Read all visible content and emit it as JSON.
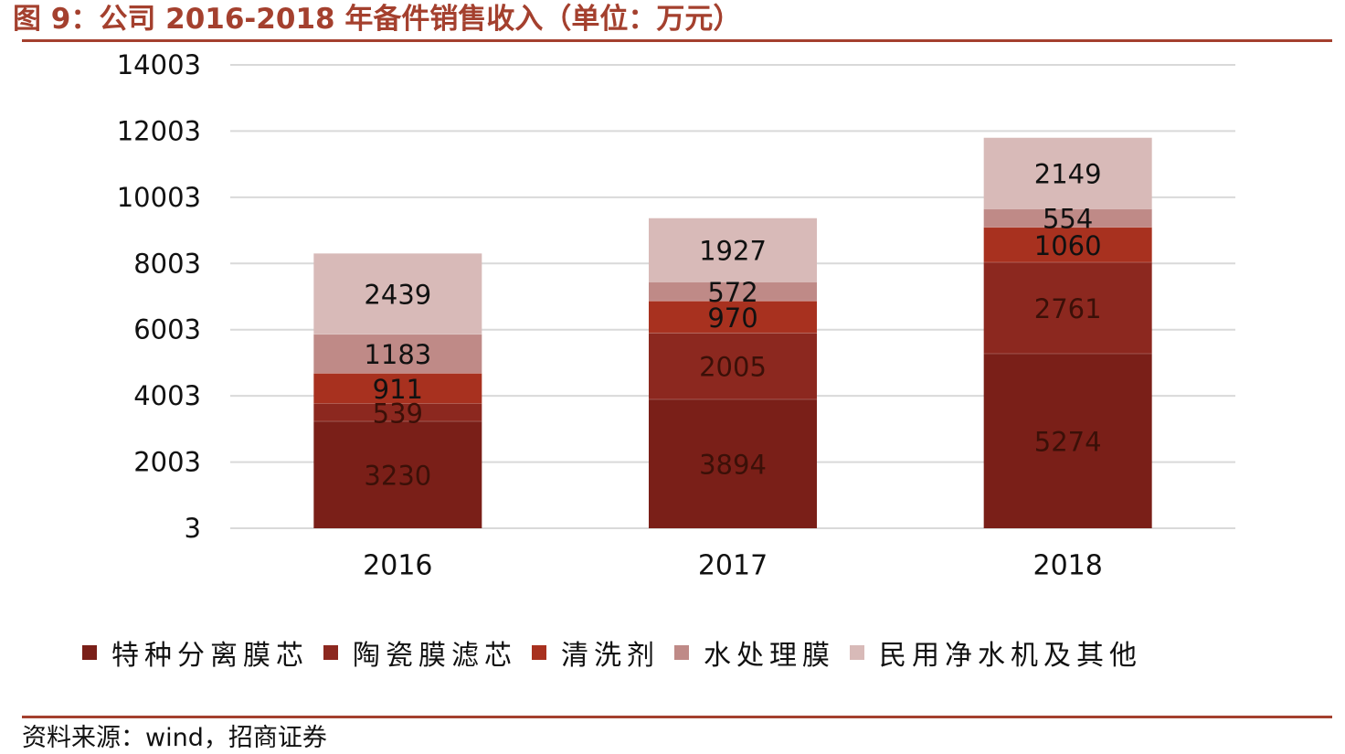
{
  "header": {
    "title": "图 9：公司 2016-2018 年备件销售收入（单位：万元）"
  },
  "chart_data": {
    "type": "bar",
    "stacked": true,
    "categories": [
      "2016",
      "2017",
      "2018"
    ],
    "series": [
      {
        "name": "特种分离膜芯",
        "values": [
          3230,
          3894,
          5274
        ],
        "color": "#7a1f18",
        "label_color": "#3b1008"
      },
      {
        "name": "陶瓷膜滤芯",
        "values": [
          539,
          2005,
          2761
        ],
        "color": "#8c281f",
        "label_color": "#3b1008"
      },
      {
        "name": "清洗剂",
        "values": [
          911,
          970,
          1060
        ],
        "color": "#a8311f",
        "label_color": "#111111"
      },
      {
        "name": "水处理膜",
        "values": [
          1183,
          572,
          554
        ],
        "color": "#bf8a87",
        "label_color": "#111111"
      },
      {
        "name": "民用净水机及其他",
        "values": [
          2439,
          1927,
          2149
        ],
        "color": "#d8bab8",
        "label_color": "#111111"
      }
    ],
    "y_ticks": [
      3,
      2003,
      4003,
      6003,
      8003,
      10003,
      12003,
      14003
    ],
    "ylim": [
      3,
      14003
    ],
    "grid": true,
    "legend_position": "bottom",
    "grid_color": "#d9d9d9"
  },
  "footer": {
    "source": "资料来源：wind，招商证券"
  }
}
